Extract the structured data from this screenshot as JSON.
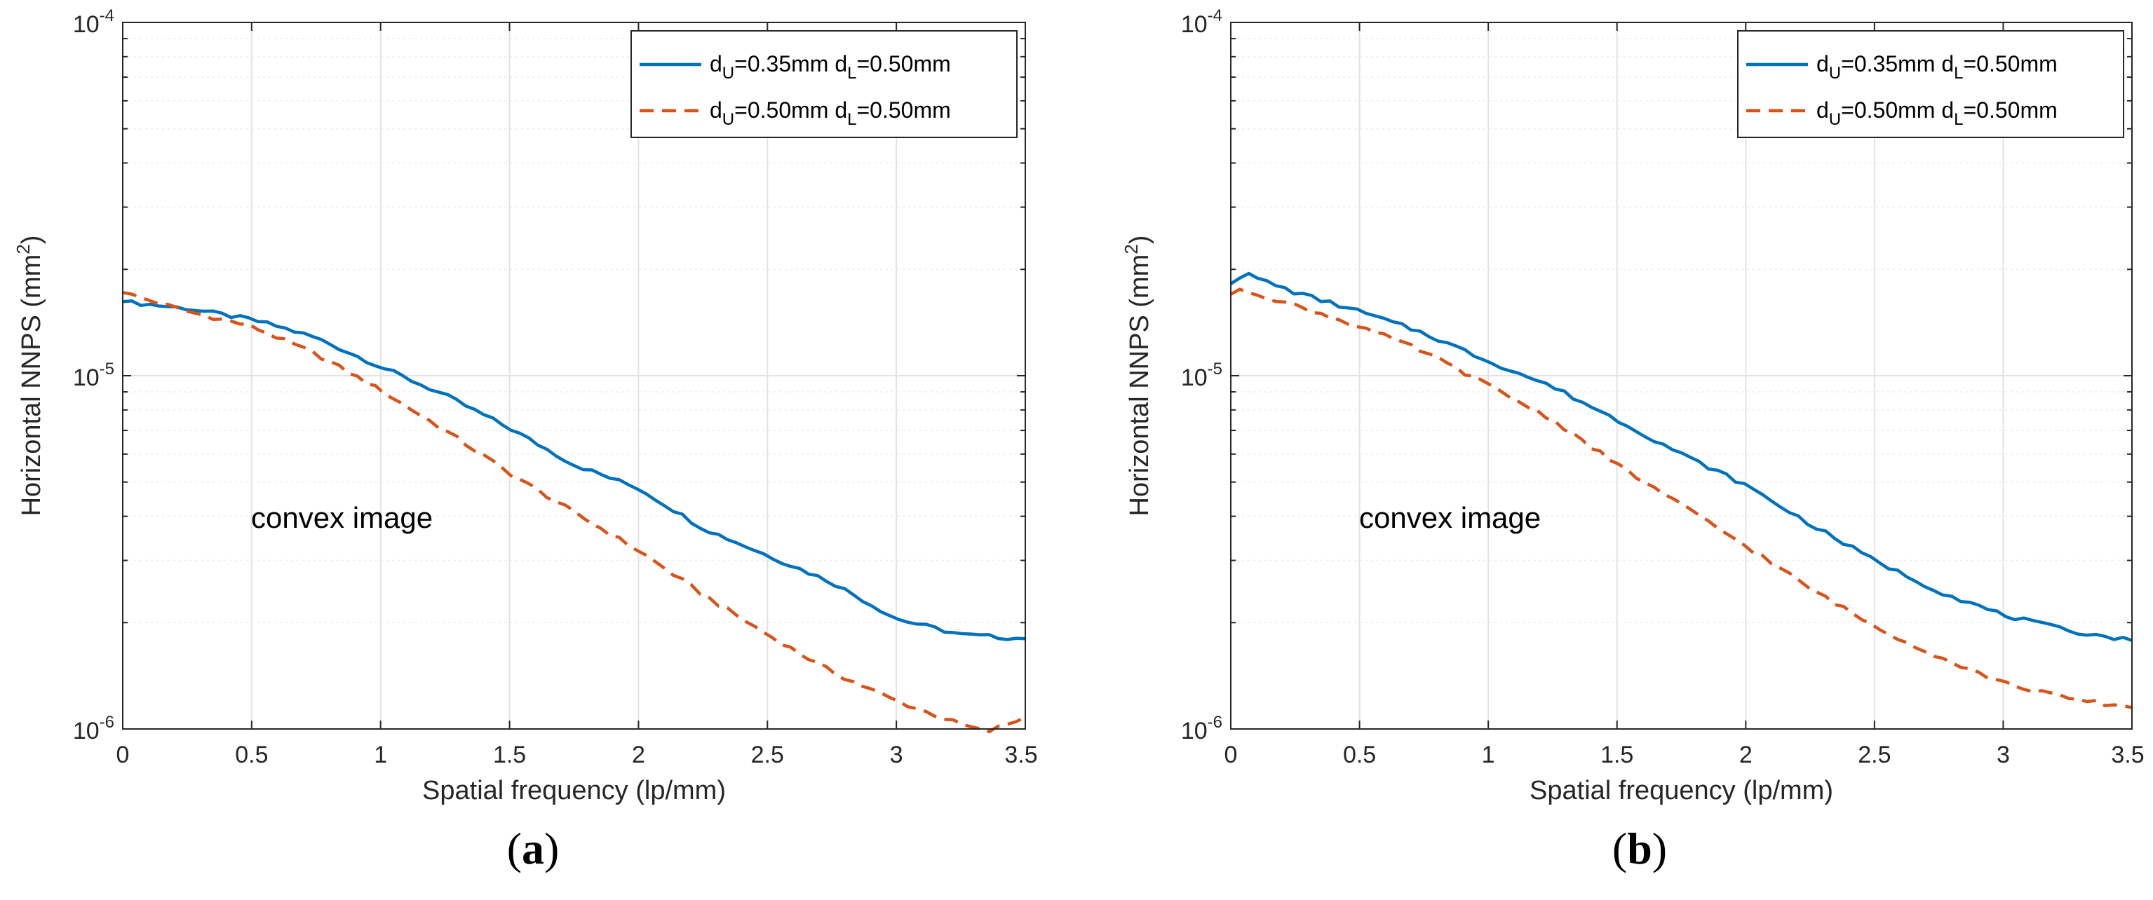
{
  "chart_data": [
    {
      "type": "line",
      "panel_label": "a",
      "xlabel": "Spatial frequency (lp/mm)",
      "ylabel_text": "Horizontal NNPS (mm",
      "ylabel_sup": "2",
      "ylabel_close": ")",
      "xlim": [
        0,
        3.5
      ],
      "ylim": [
        1e-06,
        0.0001
      ],
      "yscale": "log",
      "grid": true,
      "xticks": [
        "0",
        "0.5",
        "1",
        "1.5",
        "2",
        "2.5",
        "3",
        "3.5"
      ],
      "yticks": [
        {
          "base": "10",
          "exp": "-6"
        },
        {
          "base": "10",
          "exp": "-5"
        },
        {
          "base": "10",
          "exp": "-4"
        }
      ],
      "annotation": "convex image",
      "legend_position": "top-right",
      "series": [
        {
          "name": "d_U=0.35mm d_L=0.50mm",
          "label": {
            "a": "d",
            "as": "U",
            "b": "=0.35mm d",
            "bs": "L",
            "c": "=0.50mm"
          },
          "color": "#0072bd",
          "style": "solid",
          "x": [
            0,
            0.25,
            0.5,
            0.6,
            0.75,
            1.0,
            1.25,
            1.5,
            1.75,
            2.0,
            2.25,
            2.5,
            2.75,
            3.0,
            3.25,
            3.5
          ],
          "y": [
            1.62e-05,
            1.55e-05,
            1.44e-05,
            1.38e-05,
            1.28e-05,
            1.06e-05,
            8.8e-06,
            7.1e-06,
            5.6e-06,
            4.8e-06,
            3.7e-06,
            3.1e-06,
            2.6e-06,
            2.05e-06,
            1.85e-06,
            1.8e-06
          ]
        },
        {
          "name": "d_U=0.50mm d_L=0.50mm",
          "label": {
            "a": "d",
            "as": "U",
            "b": "=0.50mm d",
            "bs": "L",
            "c": "=0.50mm"
          },
          "color": "#d95319",
          "style": "dashed",
          "x": [
            0,
            0.25,
            0.5,
            0.75,
            1.0,
            1.25,
            1.5,
            1.75,
            2.0,
            2.25,
            2.5,
            2.75,
            3.0,
            3.25,
            3.35,
            3.5
          ],
          "y": [
            1.72e-05,
            1.52e-05,
            1.38e-05,
            1.15e-05,
            9.1e-06,
            7e-06,
            5.3e-06,
            4.1e-06,
            3.2e-06,
            2.4e-06,
            1.85e-06,
            1.45e-06,
            1.2e-06,
            1.03e-06,
            9.8e-07,
            1.08e-06
          ]
        }
      ]
    },
    {
      "type": "line",
      "panel_label": "b",
      "xlabel": "Spatial frequency (lp/mm)",
      "ylabel_text": "Horizontal NNPS (mm",
      "ylabel_sup": "2",
      "ylabel_close": ")",
      "xlim": [
        0,
        3.5
      ],
      "ylim": [
        1e-06,
        0.0001
      ],
      "yscale": "log",
      "grid": true,
      "xticks": [
        "0",
        "0.5",
        "1",
        "1.5",
        "2",
        "2.5",
        "3",
        "3.5"
      ],
      "yticks": [
        {
          "base": "10",
          "exp": "-6"
        },
        {
          "base": "10",
          "exp": "-5"
        },
        {
          "base": "10",
          "exp": "-4"
        }
      ],
      "annotation": "convex image",
      "legend_position": "top-right",
      "series": [
        {
          "name": "d_U=0.35mm d_L=0.50mm",
          "label": {
            "a": "d",
            "as": "U",
            "b": "=0.35mm d",
            "bs": "L",
            "c": "=0.50mm"
          },
          "color": "#0072bd",
          "style": "solid",
          "x": [
            0,
            0.05,
            0.25,
            0.5,
            0.75,
            1.0,
            1.25,
            1.5,
            1.75,
            2.0,
            2.25,
            2.5,
            2.75,
            3.0,
            3.25,
            3.5
          ],
          "y": [
            1.82e-05,
            1.95e-05,
            1.72e-05,
            1.52e-05,
            1.32e-05,
            1.1e-05,
            9.3e-06,
            7.5e-06,
            6e-06,
            4.9e-06,
            3.8e-06,
            3e-06,
            2.45e-06,
            2.1e-06,
            1.9e-06,
            1.78e-06
          ]
        },
        {
          "name": "d_U=0.50mm d_L=0.50mm",
          "label": {
            "a": "d",
            "as": "U",
            "b": "=0.50mm d",
            "bs": "L",
            "c": "=0.50mm"
          },
          "color": "#d95319",
          "style": "dashed",
          "x": [
            0,
            0.05,
            0.25,
            0.5,
            0.75,
            1.0,
            1.25,
            1.5,
            1.75,
            2.0,
            2.25,
            2.5,
            2.75,
            3.0,
            3.25,
            3.5
          ],
          "y": [
            1.7e-05,
            1.75e-05,
            1.58e-05,
            1.38e-05,
            1.17e-05,
            9.4e-06,
            7.5e-06,
            5.6e-06,
            4.3e-06,
            3.3e-06,
            2.5e-06,
            1.95e-06,
            1.6e-06,
            1.35e-06,
            1.22e-06,
            1.15e-06
          ]
        }
      ]
    }
  ]
}
